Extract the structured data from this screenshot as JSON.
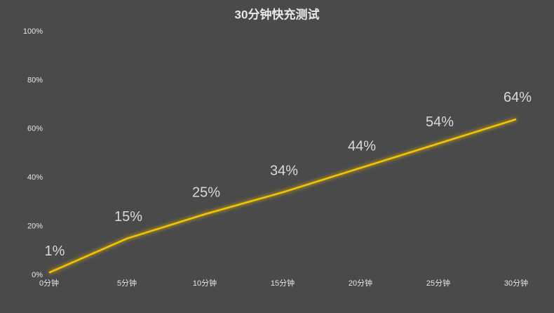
{
  "chart_data": {
    "type": "line",
    "title": "30分钟快充测试",
    "categories": [
      "0分钟",
      "5分钟",
      "10分钟",
      "15分钟",
      "20分钟",
      "25分钟",
      "30分钟"
    ],
    "values": [
      1,
      15,
      25,
      34,
      44,
      54,
      64
    ],
    "value_labels": [
      "1%",
      "15%",
      "25%",
      "34%",
      "44%",
      "54%",
      "64%"
    ],
    "color": "#f5c400",
    "ylim": [
      0,
      100
    ],
    "yticks": [
      {
        "value": 0,
        "label": "0%"
      },
      {
        "value": 20,
        "label": "20%"
      },
      {
        "value": 40,
        "label": "40%"
      },
      {
        "value": 60,
        "label": "60%"
      },
      {
        "value": 80,
        "label": "80%"
      },
      {
        "value": 100,
        "label": "100%"
      }
    ],
    "grid": false
  }
}
